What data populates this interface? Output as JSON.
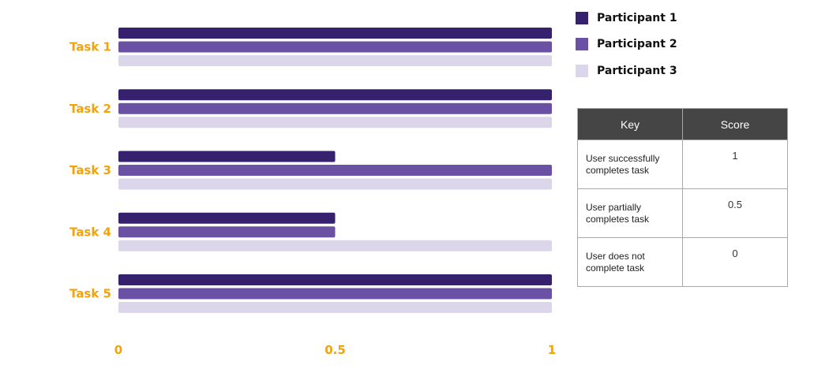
{
  "chart_data": {
    "type": "bar",
    "orientation": "horizontal",
    "categories": [
      "Task 1",
      "Task 2",
      "Task 3",
      "Task 4",
      "Task 5"
    ],
    "series": [
      {
        "name": "Participant 1",
        "color": "#35216e",
        "values": [
          1,
          1,
          0.5,
          0.5,
          1
        ]
      },
      {
        "name": "Participant 2",
        "color": "#6a51a4",
        "values": [
          1,
          1,
          1,
          0.5,
          1
        ]
      },
      {
        "name": "Participant 3",
        "color": "#dcd6ea",
        "values": [
          1,
          1,
          1,
          1,
          1
        ]
      }
    ],
    "xlim": [
      0,
      1
    ],
    "xticks": [
      0,
      0.5,
      1
    ],
    "xtick_labels": [
      "0",
      "0.5",
      "1"
    ],
    "label_color": "#f2a20c",
    "grid": false,
    "legend": "top-right"
  },
  "legend": {
    "items": [
      {
        "label": "Participant 1",
        "color": "#35216e"
      },
      {
        "label": "Participant 2",
        "color": "#6a51a4"
      },
      {
        "label": "Participant 3",
        "color": "#dcd6ea"
      }
    ]
  },
  "key_table": {
    "headers": [
      "Key",
      "Score"
    ],
    "rows": [
      {
        "key": "User successfully completes task",
        "score": "1"
      },
      {
        "key": "User partially completes task",
        "score": "0.5"
      },
      {
        "key": "User does not complete task",
        "score": "0"
      }
    ]
  }
}
